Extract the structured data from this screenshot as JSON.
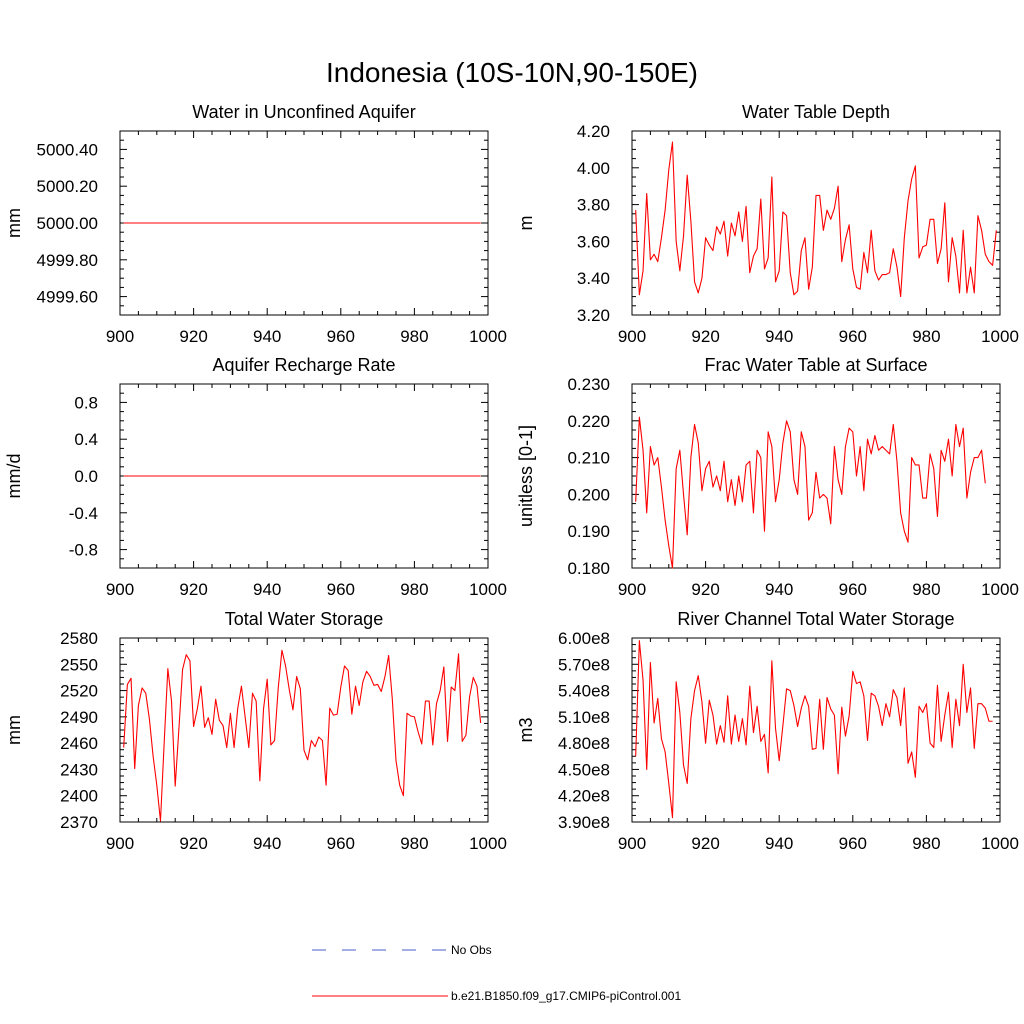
{
  "figure": {
    "title": "Indonesia (10S-10N,90-150E)"
  },
  "legend": {
    "entries": [
      {
        "label": "No Obs",
        "color": "#4a5cc8",
        "style": "dashed"
      },
      {
        "label": "b.e21.B1850.f09_g17.CMIP6-piControl.001",
        "color": "#ff0000",
        "style": "solid"
      }
    ]
  },
  "chart_data": [
    {
      "type": "line",
      "title": "Water in Unconfined Aquifer",
      "xlabel": "",
      "ylabel": "mm",
      "xlim": [
        900,
        1000
      ],
      "ylim": [
        4999.5,
        5000.5
      ],
      "xticks": [
        "900",
        "920",
        "940",
        "960",
        "980",
        "1000"
      ],
      "yticks": [
        "5000.40",
        "5000.20",
        "5000.00",
        "4999.80",
        "4999.60"
      ],
      "yticks_values": [
        5000.4,
        5000.2,
        5000.0,
        4999.8,
        4999.6
      ],
      "series": [
        {
          "color": "#ff0000",
          "x_start": 901,
          "x_step": 1,
          "values": [
            5000,
            5000,
            5000,
            5000,
            5000,
            5000,
            5000,
            5000,
            5000,
            5000,
            5000,
            5000,
            5000,
            5000,
            5000,
            5000,
            5000,
            5000,
            5000,
            5000,
            5000,
            5000,
            5000,
            5000,
            5000,
            5000,
            5000,
            5000,
            5000,
            5000,
            5000,
            5000,
            5000,
            5000,
            5000,
            5000,
            5000,
            5000,
            5000,
            5000,
            5000,
            5000,
            5000,
            5000,
            5000,
            5000,
            5000,
            5000,
            5000,
            5000,
            5000,
            5000,
            5000,
            5000,
            5000,
            5000,
            5000,
            5000,
            5000,
            5000,
            5000,
            5000,
            5000,
            5000,
            5000,
            5000,
            5000,
            5000,
            5000,
            5000,
            5000,
            5000,
            5000,
            5000,
            5000,
            5000,
            5000,
            5000,
            5000,
            5000,
            5000,
            5000,
            5000,
            5000,
            5000,
            5000,
            5000,
            5000,
            5000,
            5000,
            5000,
            5000,
            5000,
            5000,
            5000,
            5000,
            5000,
            5000
          ]
        }
      ]
    },
    {
      "type": "line",
      "title": "Water Table Depth",
      "xlabel": "",
      "ylabel": "m",
      "xlim": [
        900,
        1000
      ],
      "ylim": [
        3.2,
        4.2
      ],
      "xticks": [
        "900",
        "920",
        "940",
        "960",
        "980",
        "1000"
      ],
      "yticks": [
        "4.20",
        "4.00",
        "3.80",
        "3.60",
        "3.40",
        "3.20"
      ],
      "yticks_values": [
        4.2,
        4.0,
        3.8,
        3.6,
        3.4,
        3.2
      ],
      "series": [
        {
          "color": "#ff0000",
          "x_start": 901,
          "x_step": 1,
          "values": [
            3.77,
            3.31,
            3.44,
            3.86,
            3.5,
            3.53,
            3.49,
            3.62,
            3.77,
            3.99,
            4.14,
            3.6,
            3.44,
            3.63,
            3.96,
            3.71,
            3.38,
            3.32,
            3.4,
            3.62,
            3.58,
            3.55,
            3.68,
            3.64,
            3.71,
            3.52,
            3.7,
            3.63,
            3.76,
            3.6,
            3.79,
            3.43,
            3.52,
            3.56,
            3.83,
            3.45,
            3.51,
            3.95,
            3.38,
            3.44,
            3.76,
            3.74,
            3.43,
            3.31,
            3.33,
            3.55,
            3.62,
            3.34,
            3.46,
            3.85,
            3.85,
            3.66,
            3.77,
            3.72,
            3.78,
            3.9,
            3.49,
            3.61,
            3.69,
            3.45,
            3.35,
            3.34,
            3.54,
            3.43,
            3.66,
            3.44,
            3.39,
            3.42,
            3.42,
            3.43,
            3.56,
            3.46,
            3.3,
            3.62,
            3.82,
            3.94,
            4.01,
            3.51,
            3.57,
            3.58,
            3.72,
            3.72,
            3.48,
            3.56,
            3.81,
            3.38,
            3.62,
            3.52,
            3.32,
            3.66,
            3.32,
            3.46,
            3.32,
            3.74,
            3.66,
            3.53,
            3.49,
            3.47,
            3.66
          ]
        }
      ]
    },
    {
      "type": "line",
      "title": "Aquifer Recharge Rate",
      "xlabel": "",
      "ylabel": "mm/d",
      "xlim": [
        900,
        1000
      ],
      "ylim": [
        -1.0,
        1.0
      ],
      "xticks": [
        "900",
        "920",
        "940",
        "960",
        "980",
        "1000"
      ],
      "yticks": [
        "0.8",
        "0.4",
        "0.0",
        "-0.4",
        "-0.8"
      ],
      "yticks_values": [
        0.8,
        0.4,
        0.0,
        -0.4,
        -0.8
      ],
      "series": [
        {
          "color": "#ff0000",
          "x_start": 901,
          "x_step": 1,
          "values": [
            0,
            0,
            0,
            0,
            0,
            0,
            0,
            0,
            0,
            0,
            0,
            0,
            0,
            0,
            0,
            0,
            0,
            0,
            0,
            0,
            0,
            0,
            0,
            0,
            0,
            0,
            0,
            0,
            0,
            0,
            0,
            0,
            0,
            0,
            0,
            0,
            0,
            0,
            0,
            0,
            0,
            0,
            0,
            0,
            0,
            0,
            0,
            0,
            0,
            0,
            0,
            0,
            0,
            0,
            0,
            0,
            0,
            0,
            0,
            0,
            0,
            0,
            0,
            0,
            0,
            0,
            0,
            0,
            0,
            0,
            0,
            0,
            0,
            0,
            0,
            0,
            0,
            0,
            0,
            0,
            0,
            0,
            0,
            0,
            0,
            0,
            0,
            0,
            0,
            0,
            0,
            0,
            0,
            0,
            0,
            0,
            0,
            0
          ]
        }
      ]
    },
    {
      "type": "line",
      "title": "Frac Water Table at Surface",
      "xlabel": "",
      "ylabel": "unitless [0-1]",
      "xlim": [
        900,
        1000
      ],
      "ylim": [
        0.18,
        0.23
      ],
      "xticks": [
        "900",
        "920",
        "940",
        "960",
        "980",
        "1000"
      ],
      "yticks": [
        "0.230",
        "0.220",
        "0.210",
        "0.200",
        "0.190",
        "0.180"
      ],
      "yticks_values": [
        0.23,
        0.22,
        0.21,
        0.2,
        0.19,
        0.18
      ],
      "series": [
        {
          "color": "#ff0000",
          "x_start": 901,
          "x_step": 1,
          "values": [
            0.198,
            0.221,
            0.212,
            0.195,
            0.213,
            0.208,
            0.21,
            0.202,
            0.193,
            0.186,
            0.18,
            0.207,
            0.212,
            0.2,
            0.189,
            0.21,
            0.219,
            0.214,
            0.201,
            0.207,
            0.209,
            0.202,
            0.205,
            0.201,
            0.209,
            0.198,
            0.204,
            0.197,
            0.205,
            0.198,
            0.208,
            0.209,
            0.195,
            0.212,
            0.21,
            0.19,
            0.217,
            0.213,
            0.198,
            0.204,
            0.214,
            0.22,
            0.217,
            0.204,
            0.2,
            0.217,
            0.213,
            0.193,
            0.195,
            0.206,
            0.199,
            0.2,
            0.199,
            0.192,
            0.213,
            0.204,
            0.2,
            0.213,
            0.218,
            0.217,
            0.205,
            0.213,
            0.201,
            0.215,
            0.211,
            0.216,
            0.212,
            0.213,
            0.212,
            0.211,
            0.219,
            0.209,
            0.195,
            0.19,
            0.187,
            0.21,
            0.208,
            0.208,
            0.199,
            0.199,
            0.211,
            0.207,
            0.194,
            0.212,
            0.209,
            0.215,
            0.205,
            0.219,
            0.213,
            0.218,
            0.199,
            0.206,
            0.21,
            0.21,
            0.212,
            0.203
          ]
        }
      ]
    },
    {
      "type": "line",
      "title": "Total Water Storage",
      "xlabel": "",
      "ylabel": "mm",
      "xlim": [
        900,
        1000
      ],
      "ylim": [
        2370,
        2580
      ],
      "xticks": [
        "900",
        "920",
        "940",
        "960",
        "980",
        "1000"
      ],
      "yticks": [
        "2580",
        "2550",
        "2520",
        "2490",
        "2460",
        "2430",
        "2400",
        "2370"
      ],
      "yticks_values": [
        2580,
        2550,
        2520,
        2490,
        2460,
        2430,
        2400,
        2370
      ],
      "series": [
        {
          "color": "#ff0000",
          "x_start": 901,
          "x_step": 1,
          "values": [
            2455,
            2527,
            2534,
            2431,
            2503,
            2523,
            2517,
            2487,
            2445,
            2412,
            2371,
            2460,
            2545,
            2508,
            2411,
            2476,
            2544,
            2561,
            2554,
            2479,
            2499,
            2525,
            2478,
            2489,
            2470,
            2510,
            2486,
            2480,
            2455,
            2494,
            2455,
            2500,
            2525,
            2490,
            2455,
            2517,
            2508,
            2417,
            2499,
            2533,
            2458,
            2463,
            2523,
            2566,
            2548,
            2521,
            2498,
            2536,
            2522,
            2452,
            2441,
            2463,
            2456,
            2467,
            2463,
            2412,
            2500,
            2492,
            2493,
            2524,
            2548,
            2543,
            2493,
            2525,
            2503,
            2530,
            2542,
            2536,
            2526,
            2527,
            2519,
            2536,
            2560,
            2510,
            2440,
            2412,
            2400,
            2494,
            2491,
            2490,
            2473,
            2459,
            2508,
            2508,
            2458,
            2505,
            2520,
            2547,
            2462,
            2524,
            2520,
            2562,
            2462,
            2469,
            2513,
            2535,
            2525,
            2483
          ]
        }
      ]
    },
    {
      "type": "line",
      "title": "River Channel Total Water Storage",
      "xlabel": "",
      "ylabel": "m3",
      "xlim": [
        900,
        1000
      ],
      "ylim": [
        390000000,
        600000000
      ],
      "xticks": [
        "900",
        "920",
        "940",
        "960",
        "980",
        "1000"
      ],
      "yticks": [
        "6.00e8",
        "5.70e8",
        "5.40e8",
        "5.10e8",
        "4.80e8",
        "4.50e8",
        "4.20e8",
        "3.90e8"
      ],
      "yticks_values": [
        600000000,
        570000000,
        540000000,
        510000000,
        480000000,
        450000000,
        420000000,
        390000000
      ],
      "series": [
        {
          "color": "#ff0000",
          "x_start": 901,
          "x_step": 1,
          "values": [
            465000000,
            597000000,
            552000000,
            450000000,
            572000000,
            503000000,
            531000000,
            485000000,
            470000000,
            434000000,
            395000000,
            550000000,
            515000000,
            455000000,
            434000000,
            508000000,
            540000000,
            557000000,
            527000000,
            480000000,
            529000000,
            512000000,
            479000000,
            500000000,
            481000000,
            534000000,
            479000000,
            512000000,
            482000000,
            508000000,
            478000000,
            545000000,
            492000000,
            522000000,
            482000000,
            490000000,
            446000000,
            574000000,
            497000000,
            460000000,
            500000000,
            542000000,
            540000000,
            523000000,
            499000000,
            520000000,
            534000000,
            522000000,
            473000000,
            474000000,
            530000000,
            473000000,
            532000000,
            519000000,
            512000000,
            445000000,
            521000000,
            488000000,
            511000000,
            562000000,
            548000000,
            550000000,
            534000000,
            483000000,
            537000000,
            534000000,
            522000000,
            500000000,
            525000000,
            510000000,
            541000000,
            532000000,
            500000000,
            543000000,
            457000000,
            470000000,
            441000000,
            522000000,
            515000000,
            525000000,
            480000000,
            475000000,
            546000000,
            482000000,
            512000000,
            538000000,
            475000000,
            530000000,
            500000000,
            570000000,
            515000000,
            543000000,
            474000000,
            525000000,
            525000000,
            520000000,
            505000000,
            505000000
          ]
        }
      ]
    }
  ]
}
